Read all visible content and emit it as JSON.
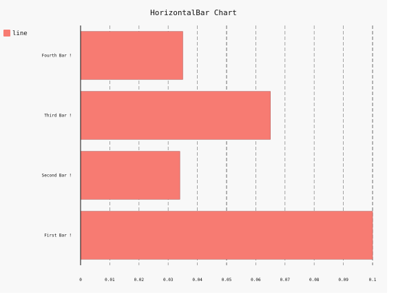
{
  "chart_data": {
    "type": "bar",
    "orientation": "horizontal",
    "title": "HorizontalBar Chart",
    "xlabel": "",
    "ylabel": "",
    "categories": [
      "First Bar !",
      "Second Bar !",
      "Third Bar !",
      "Fourth Bar !"
    ],
    "series": [
      {
        "name": "line",
        "color": "#f77b72",
        "values": [
          0.1,
          0.034,
          0.065,
          0.035
        ]
      }
    ],
    "xlim": [
      0,
      0.1
    ],
    "ticks": [
      "0",
      "0.01",
      "0.02",
      "0.03",
      "0.04",
      "0.05",
      "0.06",
      "0.07",
      "0.08",
      "0.09",
      "0.1"
    ],
    "grid": true,
    "legend_position": "top-left"
  }
}
